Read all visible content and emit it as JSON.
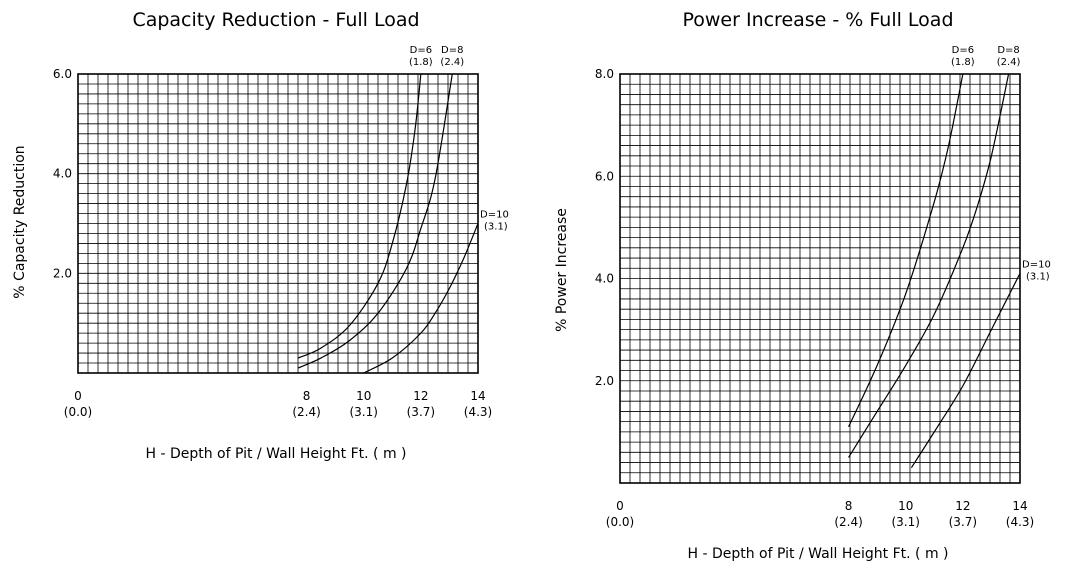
{
  "chart_data": [
    {
      "type": "line",
      "title": "Capacity Reduction - Full Load",
      "xlabel": "H - Depth of Pit / Wall Height  Ft. ( m )",
      "ylabel": "% Capacity Reduction",
      "xlim": [
        0,
        14
      ],
      "ylim": [
        0,
        6.0
      ],
      "grid": true,
      "x_ticks": [
        {
          "value": 0,
          "label": "0",
          "sub": "(0.0)"
        },
        {
          "value": 8,
          "label": "8",
          "sub": "(2.4)"
        },
        {
          "value": 10,
          "label": "10",
          "sub": "(3.1)"
        },
        {
          "value": 12,
          "label": "12",
          "sub": "(3.7)"
        },
        {
          "value": 14,
          "label": "14",
          "sub": "(4.3)"
        }
      ],
      "y_ticks": [
        {
          "value": 2.0,
          "label": "2.0"
        },
        {
          "value": 4.0,
          "label": "4.0"
        },
        {
          "value": 6.0,
          "label": "6.0"
        }
      ],
      "series": [
        {
          "name": "D=6",
          "sub": "(1.8)",
          "label_pos": "top",
          "x": [
            7.7,
            8.5,
            9.5,
            10.5,
            11.0,
            11.5,
            11.8,
            12.0
          ],
          "y": [
            0.3,
            0.5,
            0.95,
            1.8,
            2.6,
            3.8,
            4.9,
            6.0
          ]
        },
        {
          "name": "D=8",
          "sub": "(2.4)",
          "label_pos": "top",
          "x": [
            7.7,
            8.5,
            9.5,
            10.5,
            11.5,
            12.0,
            12.5,
            13.1
          ],
          "y": [
            0.1,
            0.3,
            0.65,
            1.2,
            2.1,
            2.9,
            3.9,
            6.0
          ]
        },
        {
          "name": "D=10",
          "sub": "(3.1)",
          "label_pos": "right",
          "x": [
            10.0,
            11.0,
            12.0,
            12.5,
            13.0,
            13.5,
            14.0
          ],
          "y": [
            0.0,
            0.3,
            0.8,
            1.2,
            1.7,
            2.3,
            3.0
          ]
        }
      ]
    },
    {
      "type": "line",
      "title": "Power Increase - % Full Load",
      "xlabel": "H - Depth of Pit / Wall Height  Ft. ( m )",
      "ylabel": "% Power Increase",
      "xlim": [
        0,
        14
      ],
      "ylim": [
        0,
        8.0
      ],
      "grid": true,
      "x_ticks": [
        {
          "value": 0,
          "label": "0",
          "sub": "(0.0)"
        },
        {
          "value": 8,
          "label": "8",
          "sub": "(2.4)"
        },
        {
          "value": 10,
          "label": "10",
          "sub": "(3.1)"
        },
        {
          "value": 12,
          "label": "12",
          "sub": "(3.7)"
        },
        {
          "value": 14,
          "label": "14",
          "sub": "(4.3)"
        }
      ],
      "y_ticks": [
        {
          "value": 2.0,
          "label": "2.0"
        },
        {
          "value": 4.0,
          "label": "4.0"
        },
        {
          "value": 6.0,
          "label": "6.0"
        },
        {
          "value": 8.0,
          "label": "8.0"
        }
      ],
      "series": [
        {
          "name": "D=6",
          "sub": "(1.8)",
          "label_pos": "top",
          "x": [
            8.0,
            9.0,
            10.0,
            11.0,
            11.5,
            12.0
          ],
          "y": [
            1.1,
            2.3,
            3.7,
            5.5,
            6.6,
            8.0
          ]
        },
        {
          "name": "D=8",
          "sub": "(2.4)",
          "label_pos": "top",
          "x": [
            8.0,
            9.0,
            10.0,
            11.0,
            12.0,
            12.5,
            13.0,
            13.6
          ],
          "y": [
            0.5,
            1.4,
            2.3,
            3.3,
            4.6,
            5.4,
            6.4,
            8.0
          ]
        },
        {
          "name": "D=10",
          "sub": "(3.1)",
          "label_pos": "right",
          "x": [
            10.2,
            11.0,
            12.0,
            13.0,
            14.0
          ],
          "y": [
            0.3,
            1.0,
            1.9,
            3.0,
            4.1
          ]
        }
      ]
    }
  ]
}
